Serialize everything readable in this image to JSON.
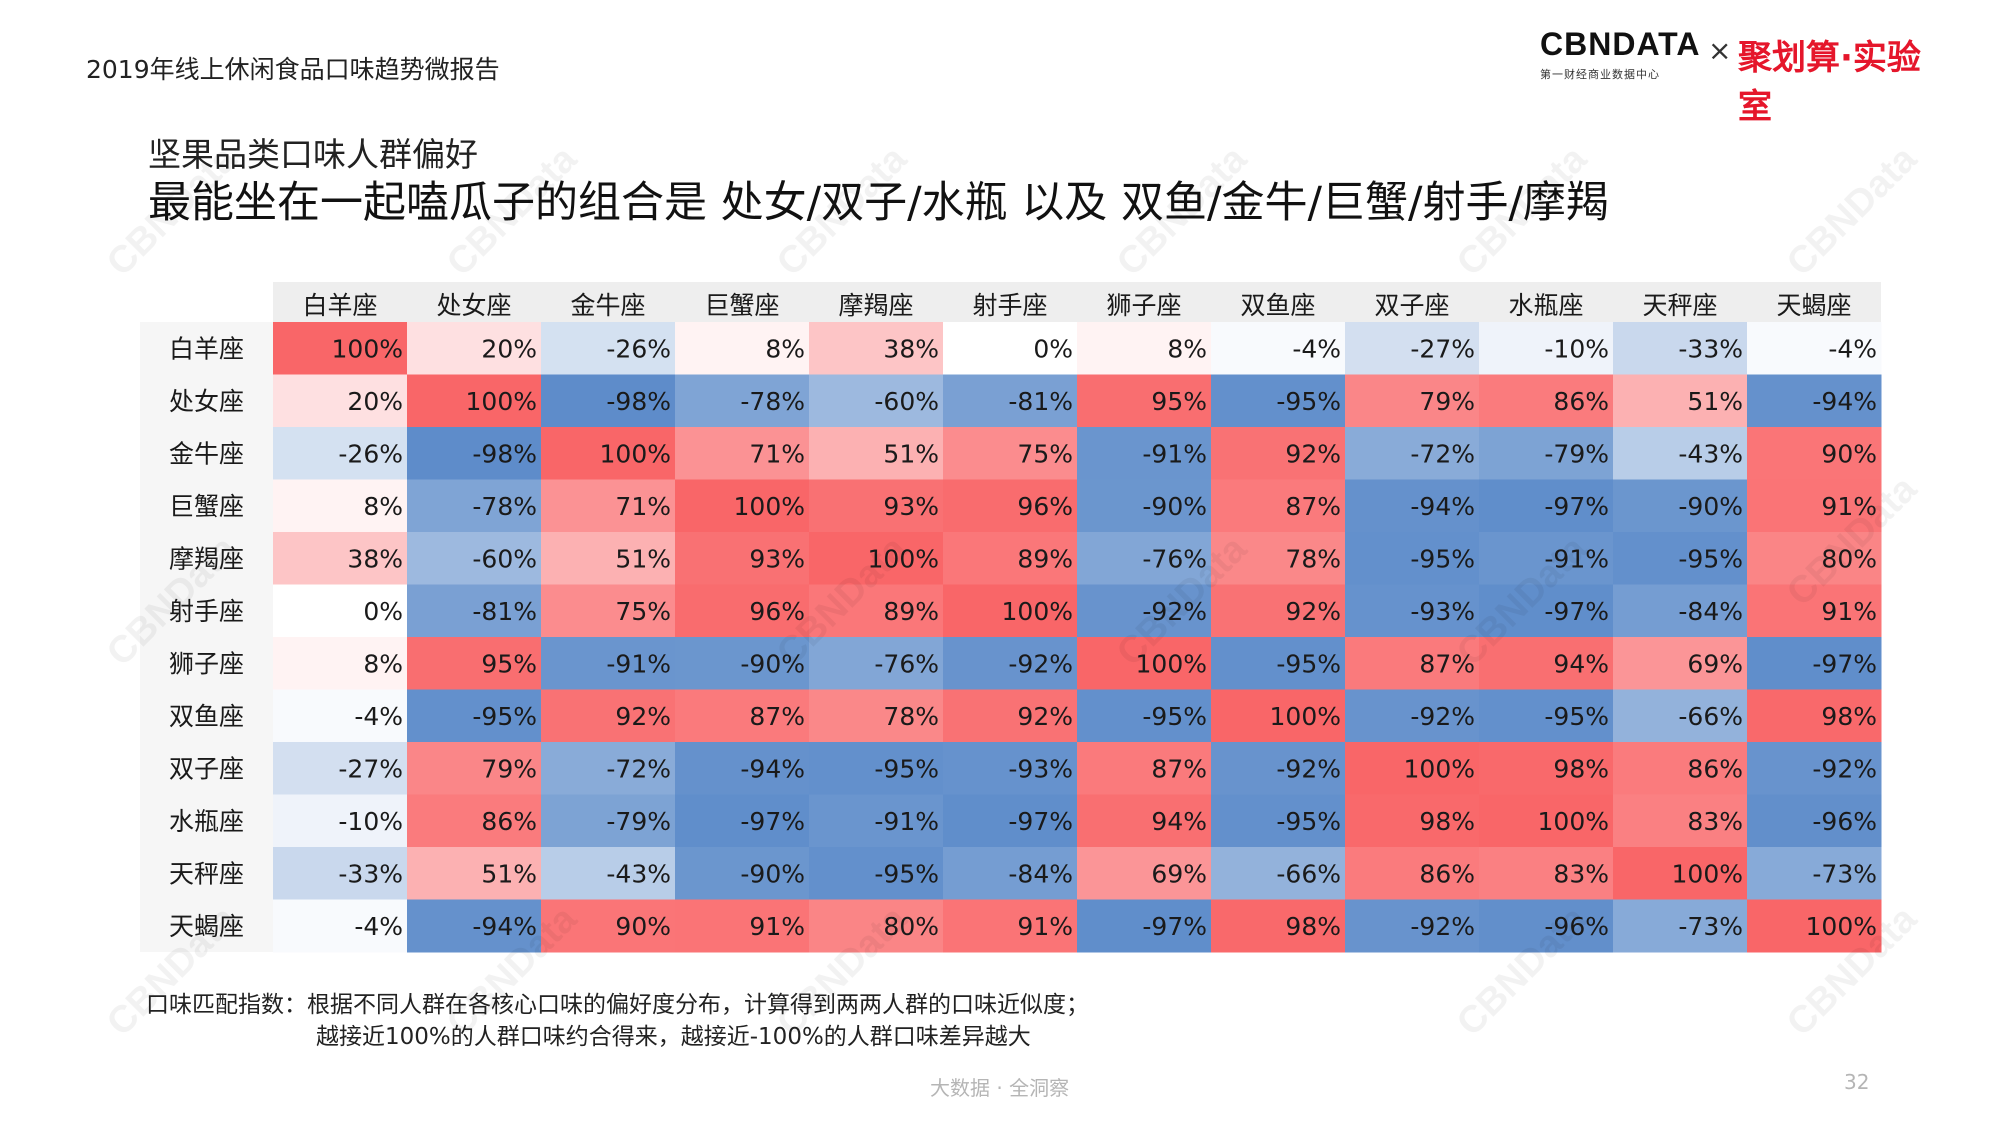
{
  "header": {
    "report_title": "2019年线上休闲食品口味趋势微报告",
    "brand_name": "CBNDATA",
    "brand_tagline": "第一财经商业数据中心",
    "brand_separator": "×",
    "partner_name": "聚划算·实验室"
  },
  "titles": {
    "subtitle": "坚果品类口味人群偏好",
    "headline": "最能坐在一起嗑瓜子的组合是 处女/双子/水瓶 以及 双鱼/金牛/巨蟹/射手/摩羯"
  },
  "watermark_text": "CBNData",
  "colors": {
    "positive": "#f96668",
    "negative": "#5b8ac9",
    "neutral": "#ffffff",
    "header_band": "#eeeeee"
  },
  "chart_data": {
    "type": "heatmap",
    "columns": [
      "白羊座",
      "处女座",
      "金牛座",
      "巨蟹座",
      "摩羯座",
      "射手座",
      "狮子座",
      "双鱼座",
      "双子座",
      "水瓶座",
      "天秤座",
      "天蝎座"
    ],
    "rows": [
      "白羊座",
      "处女座",
      "金牛座",
      "巨蟹座",
      "摩羯座",
      "射手座",
      "狮子座",
      "双鱼座",
      "双子座",
      "水瓶座",
      "天秤座",
      "天蝎座"
    ],
    "value_range": [
      -100,
      100
    ],
    "unit": "%",
    "values": [
      [
        100,
        20,
        -26,
        8,
        38,
        0,
        8,
        -4,
        -27,
        -10,
        -33,
        -4
      ],
      [
        20,
        100,
        -98,
        -78,
        -60,
        -81,
        95,
        -95,
        79,
        86,
        51,
        -94
      ],
      [
        -26,
        -98,
        100,
        71,
        51,
        75,
        -91,
        92,
        -72,
        -79,
        -43,
        90
      ],
      [
        8,
        -78,
        71,
        100,
        93,
        96,
        -90,
        87,
        -94,
        -97,
        -90,
        91
      ],
      [
        38,
        -60,
        51,
        93,
        100,
        89,
        -76,
        78,
        -95,
        -91,
        -95,
        80
      ],
      [
        0,
        -81,
        75,
        96,
        89,
        100,
        -92,
        92,
        -93,
        -97,
        -84,
        91
      ],
      [
        8,
        95,
        -91,
        -90,
        -76,
        -92,
        100,
        -95,
        87,
        94,
        69,
        -97
      ],
      [
        -4,
        -95,
        92,
        87,
        78,
        92,
        -95,
        100,
        -92,
        -95,
        -66,
        98
      ],
      [
        -27,
        79,
        -72,
        -94,
        -95,
        -93,
        87,
        -92,
        100,
        98,
        86,
        -92
      ],
      [
        -10,
        86,
        -79,
        -97,
        -91,
        -97,
        94,
        -95,
        98,
        100,
        83,
        -96
      ],
      [
        -33,
        51,
        -43,
        -90,
        -95,
        -84,
        69,
        -66,
        86,
        83,
        100,
        -73
      ],
      [
        -4,
        -94,
        90,
        91,
        80,
        91,
        -97,
        98,
        -92,
        -96,
        -73,
        100
      ]
    ]
  },
  "notes": {
    "line1": "口味匹配指数：根据不同人群在各核心口味的偏好度分布，计算得到两两人群的口味近似度；",
    "line2": "越接近100%的人群口味约合得来，越接近-100%的人群口味差异越大"
  },
  "footer": {
    "slogan": "大数据 · 全洞察",
    "page_number": "32"
  }
}
